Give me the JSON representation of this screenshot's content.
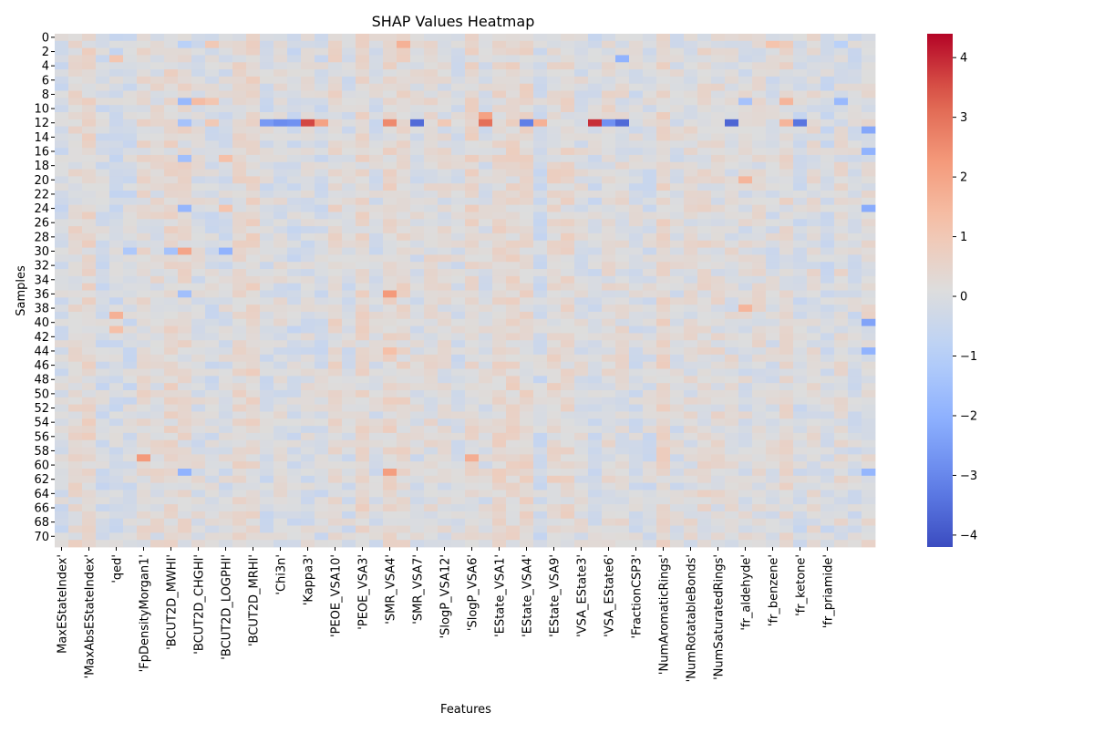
{
  "chart_data": {
    "type": "heatmap",
    "title": "SHAP Values Heatmap",
    "xlabel": "Features",
    "ylabel": "Samples",
    "n_rows": 72,
    "n_cols": 60,
    "x_tick_labels": [
      "MaxEStateIndex'",
      "'MaxAbsEStateIndex'",
      "'qed'",
      "'FpDensityMorgan1'",
      "'BCUT2D_MWHI'",
      "'BCUT2D_CHGHI'",
      "'BCUT2D_LOGPHI'",
      "'BCUT2D_MRHI'",
      "'Chi3n'",
      "'Kappa3'",
      "'PEOE_VSA10'",
      "'PEOE_VSA3'",
      "'SMR_VSA4'",
      "'SMR_VSA7'",
      "'SlogP_VSA12'",
      "'SlogP_VSA6'",
      "'EState_VSA1'",
      "'EState_VSA4'",
      "'EState_VSA9'",
      "'VSA_EState3'",
      "'VSA_EState6'",
      "'FractionCSP3'",
      "'NumAromaticRings'",
      "'NumRotatableBonds'",
      "'NumSaturatedRings'",
      "'fr_aldehyde'",
      "'fr_benzene'",
      "'fr_ketone'",
      "'fr_priamide'"
    ],
    "y_tick_labels": [
      "0",
      "2",
      "4",
      "6",
      "8",
      "10",
      "12",
      "14",
      "16",
      "18",
      "20",
      "22",
      "24",
      "26",
      "28",
      "30",
      "32",
      "34",
      "36",
      "38",
      "40",
      "42",
      "44",
      "46",
      "48",
      "50",
      "52",
      "54",
      "56",
      "58",
      "60",
      "62",
      "64",
      "66",
      "68",
      "70"
    ],
    "colorbar": {
      "vmin": -4.2,
      "vmax": 4.4,
      "ticks": [
        "−4",
        "−3",
        "−2",
        "−1",
        "0",
        "1",
        "2",
        "3",
        "4"
      ],
      "tick_values": [
        -4,
        -3,
        -2,
        -1,
        0,
        1,
        2,
        3,
        4
      ],
      "colormap": "coolwarm"
    },
    "highlights": [
      {
        "row": 12,
        "col": 18,
        "value": 3.6
      },
      {
        "row": 12,
        "col": 39,
        "value": 3.9
      },
      {
        "row": 12,
        "col": 24,
        "value": 2.5
      },
      {
        "row": 12,
        "col": 31,
        "value": 3.0
      },
      {
        "row": 11,
        "col": 31,
        "value": 2.0
      },
      {
        "row": 12,
        "col": 19,
        "value": 2.0
      },
      {
        "row": 12,
        "col": 35,
        "value": 1.6
      },
      {
        "row": 12,
        "col": 26,
        "value": -3.6
      },
      {
        "row": 12,
        "col": 34,
        "value": -3.2
      },
      {
        "row": 12,
        "col": 49,
        "value": -3.7
      },
      {
        "row": 12,
        "col": 54,
        "value": -3.4
      },
      {
        "row": 12,
        "col": 15,
        "value": -2.6
      },
      {
        "row": 12,
        "col": 16,
        "value": -2.9
      },
      {
        "row": 12,
        "col": 17,
        "value": -2.8
      },
      {
        "row": 12,
        "col": 40,
        "value": -2.8
      },
      {
        "row": 12,
        "col": 41,
        "value": -3.6
      },
      {
        "row": 12,
        "col": 9,
        "value": -1.5
      },
      {
        "row": 12,
        "col": 11,
        "value": 0.9
      },
      {
        "row": 12,
        "col": 53,
        "value": 1.5
      },
      {
        "row": 12,
        "col": 28,
        "value": 0.9
      },
      {
        "row": 3,
        "col": 41,
        "value": -2.0
      },
      {
        "row": 1,
        "col": 25,
        "value": 1.6
      },
      {
        "row": 1,
        "col": 52,
        "value": 1.1
      },
      {
        "row": 1,
        "col": 53,
        "value": 0.8
      },
      {
        "row": 1,
        "col": 57,
        "value": -1.0
      },
      {
        "row": 1,
        "col": 9,
        "value": -1.0
      },
      {
        "row": 1,
        "col": 11,
        "value": 0.9
      },
      {
        "row": 9,
        "col": 9,
        "value": -1.8
      },
      {
        "row": 9,
        "col": 10,
        "value": 1.3
      },
      {
        "row": 9,
        "col": 11,
        "value": 1.0
      },
      {
        "row": 9,
        "col": 50,
        "value": -1.5
      },
      {
        "row": 9,
        "col": 53,
        "value": 1.5
      },
      {
        "row": 9,
        "col": 57,
        "value": -1.8
      },
      {
        "row": 13,
        "col": 59,
        "value": -2.3
      },
      {
        "row": 16,
        "col": 59,
        "value": -2.0
      },
      {
        "row": 17,
        "col": 9,
        "value": -1.6
      },
      {
        "row": 17,
        "col": 12,
        "value": 1.2
      },
      {
        "row": 20,
        "col": 50,
        "value": 1.5
      },
      {
        "row": 24,
        "col": 9,
        "value": -1.9
      },
      {
        "row": 24,
        "col": 12,
        "value": 1.1
      },
      {
        "row": 24,
        "col": 59,
        "value": -2.2
      },
      {
        "row": 30,
        "col": 9,
        "value": 1.9
      },
      {
        "row": 30,
        "col": 12,
        "value": -2.0
      },
      {
        "row": 30,
        "col": 8,
        "value": -1.5
      },
      {
        "row": 30,
        "col": 5,
        "value": -1.3
      },
      {
        "row": 36,
        "col": 24,
        "value": 2.2
      },
      {
        "row": 36,
        "col": 9,
        "value": -1.6
      },
      {
        "row": 38,
        "col": 50,
        "value": 1.5
      },
      {
        "row": 39,
        "col": 4,
        "value": 1.6
      },
      {
        "row": 40,
        "col": 59,
        "value": -2.4
      },
      {
        "row": 44,
        "col": 59,
        "value": -2.0
      },
      {
        "row": 44,
        "col": 24,
        "value": 1.2
      },
      {
        "row": 59,
        "col": 6,
        "value": 2.2
      },
      {
        "row": 59,
        "col": 30,
        "value": 1.7
      },
      {
        "row": 61,
        "col": 9,
        "value": -2.0
      },
      {
        "row": 61,
        "col": 24,
        "value": 2.1
      },
      {
        "row": 61,
        "col": 59,
        "value": -1.9
      },
      {
        "row": 3,
        "col": 4,
        "value": 1.0
      },
      {
        "row": 41,
        "col": 4,
        "value": 1.2
      }
    ]
  }
}
